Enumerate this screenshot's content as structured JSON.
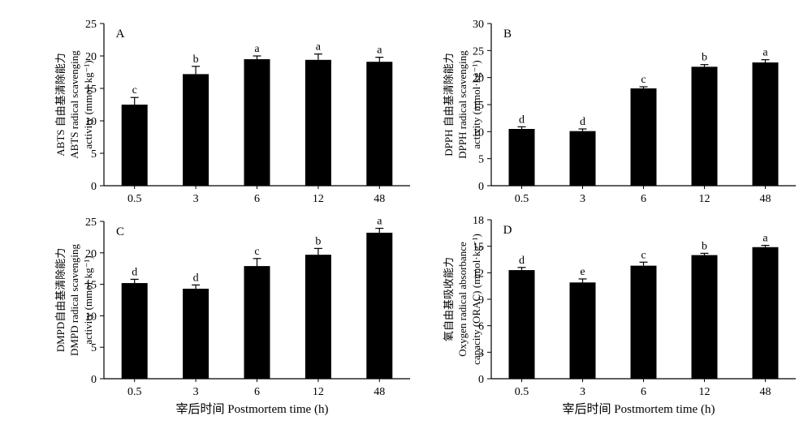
{
  "chart_data": [
    {
      "type": "bar",
      "panel": "A",
      "categories": [
        "0.5",
        "3",
        "6",
        "12",
        "48"
      ],
      "values": [
        12.5,
        17.2,
        19.5,
        19.4,
        19.1
      ],
      "errors": [
        1.1,
        1.2,
        0.5,
        0.9,
        0.7
      ],
      "letters": [
        "c",
        "b",
        "a",
        "a",
        "a"
      ],
      "ylabel_lines": [
        "ABTS 自由基清除能力",
        "ABTS radical scavenging",
        "activity (mmol·kg⁻¹)"
      ],
      "ylim": [
        0,
        25
      ],
      "yticks": [
        "0",
        "5",
        "10",
        "15",
        "20",
        "25"
      ],
      "xlabel": ""
    },
    {
      "type": "bar",
      "panel": "B",
      "categories": [
        "0.5",
        "3",
        "6",
        "12",
        "48"
      ],
      "values": [
        10.5,
        10.1,
        18.0,
        22.0,
        22.8
      ],
      "errors": [
        0.4,
        0.4,
        0.3,
        0.4,
        0.5
      ],
      "letters": [
        "d",
        "d",
        "c",
        "b",
        "a"
      ],
      "ylabel_lines": [
        "DPPH 自由基清除能力",
        "DPPH radical scavenging",
        "activity (mmol·kg⁻¹)"
      ],
      "ylim": [
        0,
        30
      ],
      "yticks": [
        "0",
        "5",
        "10",
        "15",
        "20",
        "25",
        "30"
      ],
      "xlabel": ""
    },
    {
      "type": "bar",
      "panel": "C",
      "categories": [
        "0.5",
        "3",
        "6",
        "12",
        "48"
      ],
      "values": [
        15.2,
        14.3,
        17.9,
        19.7,
        23.2
      ],
      "errors": [
        0.6,
        0.6,
        1.2,
        1.0,
        0.7
      ],
      "letters": [
        "d",
        "d",
        "c",
        "b",
        "a"
      ],
      "ylabel_lines": [
        "DMPD自由基清除能力",
        "DMPD radical scavenging",
        "activity (mmol·kg⁻¹)"
      ],
      "ylim": [
        0,
        25
      ],
      "yticks": [
        "0",
        "5",
        "10",
        "15",
        "20",
        "25"
      ],
      "xlabel": "宰后时间 Postmortem time (h)"
    },
    {
      "type": "bar",
      "panel": "D",
      "categories": [
        "0.5",
        "3",
        "6",
        "12",
        "48"
      ],
      "values": [
        12.3,
        10.9,
        12.8,
        14.0,
        14.9
      ],
      "errors": [
        0.3,
        0.4,
        0.4,
        0.2,
        0.2
      ],
      "letters": [
        "d",
        "e",
        "c",
        "b",
        "a"
      ],
      "ylabel_lines": [
        "氧自由基吸收能力",
        "Oxygen radical absorbance",
        "capacity (ORAC) (mmol·kg⁻¹)"
      ],
      "ylim": [
        0,
        18
      ],
      "yticks": [
        "0",
        "3",
        "6",
        "9",
        "12",
        "15",
        "18"
      ],
      "xlabel": "宰后时间 Postmortem time (h)"
    }
  ],
  "colors": {
    "bar": "#000000",
    "axis": "#000000",
    "background": "#ffffff"
  }
}
